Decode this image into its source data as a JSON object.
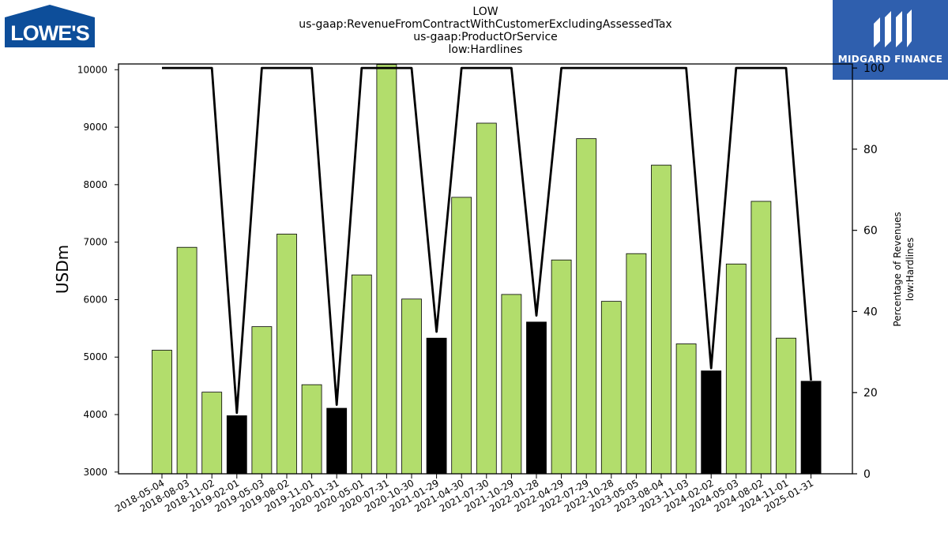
{
  "header": {
    "title_lines": [
      "LOW",
      "us-gaap:RevenueFromContractWithCustomerExcludingAssessedTax",
      "us-gaap:ProductOrService",
      "low:Hardlines"
    ]
  },
  "logos": {
    "left_text": "LOWE'S",
    "right_text": "MIDGARD FINANCE"
  },
  "chart_data": {
    "type": "bar",
    "title": "LOW us-gaap:RevenueFromContractWithCustomerExcludingAssessedTax us-gaap:ProductOrService low:Hardlines",
    "ylabel": "USDm",
    "ylabel_right": [
      "Percentage of Revenues",
      "low:Hardlines"
    ],
    "ylim": [
      2970,
      10100
    ],
    "ylim_right": [
      0,
      101
    ],
    "y_ticks": [
      3000,
      4000,
      5000,
      6000,
      7000,
      8000,
      9000,
      10000
    ],
    "y_ticks_right": [
      0,
      20,
      40,
      60,
      80,
      100
    ],
    "categories": [
      "2018-05-04",
      "2018-08-03",
      "2018-11-02",
      "2019-02-01",
      "2019-05-03",
      "2019-08-02",
      "2019-11-01",
      "2020-01-31",
      "2020-05-01",
      "2020-07-31",
      "2020-10-30",
      "2021-01-29",
      "2021-04-30",
      "2021-07-30",
      "2021-10-29",
      "2022-01-28",
      "2022-04-29",
      "2022-07-29",
      "2022-10-28",
      "2023-05-05",
      "2023-08-04",
      "2023-11-03",
      "2024-02-02",
      "2024-05-03",
      "2024-08-02",
      "2024-11-01",
      "2025-01-31"
    ],
    "series": [
      {
        "values": [
          5120,
          6910,
          4390,
          3980,
          5530,
          7140,
          4520,
          4110,
          6430,
          10090,
          6010,
          5330,
          7780,
          9070,
          6090,
          5610,
          6690,
          8800,
          5970,
          6800,
          8340,
          5230,
          4760,
          6620,
          7710,
          5330,
          4580
        ],
        "highlight": [
          false,
          false,
          false,
          true,
          false,
          false,
          false,
          true,
          false,
          false,
          false,
          true,
          false,
          false,
          false,
          true,
          false,
          false,
          false,
          false,
          false,
          false,
          true,
          false,
          false,
          false,
          true
        ],
        "color": "#b2dd6c",
        "highlight_color": "#000000"
      },
      {
        "values": [
          100,
          100,
          100,
          15,
          100,
          100,
          100,
          17,
          100,
          100,
          100,
          35,
          100,
          100,
          100,
          39,
          100,
          100,
          100,
          100,
          100,
          100,
          26,
          100,
          100,
          100,
          23
        ],
        "type": "line",
        "color": "#000000"
      }
    ],
    "legend": "none",
    "grid": false
  }
}
